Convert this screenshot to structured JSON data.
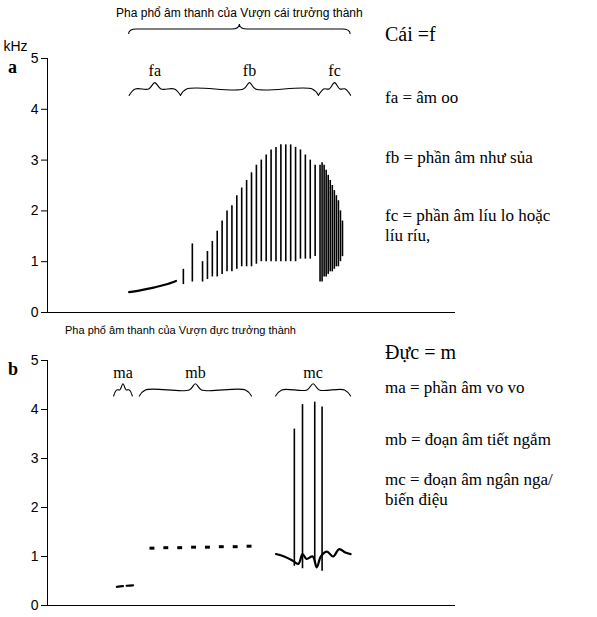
{
  "chart_data": [
    {
      "type": "spectrogram",
      "panel_label": "a",
      "title": "Pha phổ âm thanh của Vượn cái trưởng thành",
      "ylabel": "kHz",
      "color": "#000000",
      "xlim": [
        0,
        100
      ],
      "ylim": [
        0,
        5
      ],
      "yticks": [
        0,
        1,
        2,
        3,
        4,
        5
      ],
      "tick_labels": "y",
      "annotations": [
        "Cái =f",
        "fa = âm oo",
        "fb = phần âm như sủa",
        "fc = phần âm líu lo hoặc líu ríu,"
      ],
      "series": [
        {
          "name": "fa",
          "span": [
            20,
            32.6
          ],
          "marks": [
            {
              "type": "line",
              "x": [
                20,
                23,
                26,
                29,
                31.5
              ],
              "values": [
                0.4,
                0.44,
                0.49,
                0.55,
                0.62
              ]
            }
          ]
        },
        {
          "name": "fb",
          "span": [
            32.6,
            66.4
          ],
          "marks": [
            {
              "type": "rules",
              "x": [
                33.3,
                35.5,
                38.0,
                39.2,
                40.4,
                41.6,
                42.8,
                44.0,
                45.2,
                46.4,
                47.6,
                48.8,
                50.0,
                51.2,
                52.4,
                53.6,
                54.8,
                56.0,
                57.2,
                58.4,
                59.6,
                60.8,
                62.0,
                63.2,
                64.4,
                65.6
              ],
              "low": [
                0.55,
                0.6,
                0.6,
                0.65,
                0.7,
                0.7,
                0.75,
                0.8,
                0.8,
                0.85,
                0.9,
                0.9,
                0.9,
                0.95,
                1.0,
                1.0,
                1.0,
                1.0,
                1.0,
                1.0,
                1.0,
                1.0,
                1.05,
                1.05,
                1.05,
                1.1
              ],
              "high": [
                0.85,
                1.35,
                1.0,
                1.2,
                1.4,
                1.6,
                1.8,
                2.0,
                2.1,
                2.3,
                2.45,
                2.6,
                2.75,
                2.9,
                3.0,
                3.1,
                3.2,
                3.25,
                3.3,
                3.3,
                3.3,
                3.25,
                3.2,
                3.1,
                3.0,
                2.9
              ]
            }
          ]
        },
        {
          "name": "fc",
          "span": [
            66.4,
            74.3
          ],
          "marks": [
            {
              "type": "rules",
              "x": [
                66.8,
                67.3,
                67.8,
                68.3,
                68.8,
                69.3,
                69.8,
                70.3,
                70.8,
                71.3,
                71.8,
                72.3
              ],
              "low": [
                0.6,
                0.6,
                0.7,
                0.7,
                0.75,
                0.8,
                0.8,
                0.85,
                0.9,
                0.9,
                1.0,
                1.1
              ],
              "high": [
                2.9,
                2.95,
                2.9,
                2.8,
                2.7,
                2.6,
                2.5,
                2.4,
                2.3,
                2.2,
                2.0,
                1.8
              ]
            }
          ]
        }
      ]
    },
    {
      "type": "spectrogram",
      "panel_label": "b",
      "title": "Pha phổ âm thanh của Vượn đực trưởng thành",
      "color": "#000000",
      "xlim": [
        0,
        100
      ],
      "ylim": [
        0,
        5
      ],
      "yticks": [
        0,
        1,
        2,
        3,
        4,
        5
      ],
      "tick_labels": "y",
      "annotations": [
        "Đực = m",
        "ma = phần âm vo vo",
        "mb = đoạn âm tiết ngắm",
        "mc = đoạn âm ngân nga/ biến điệu"
      ],
      "series": [
        {
          "name": "ma",
          "span": [
            16.2,
            20.8
          ],
          "marks": [
            {
              "type": "line",
              "line_style": "dashed",
              "x": [
                17,
                19,
                21
              ],
              "values": [
                0.38,
                0.4,
                0.41
              ]
            }
          ]
        },
        {
          "name": "mb",
          "span": [
            22.5,
            50
          ],
          "marks": [
            {
              "type": "dashes",
              "x": [
                25,
                28.4,
                31.8,
                35.2,
                38.6,
                42,
                45.4,
                48.8
              ],
              "x_end": [
                26.2,
                29.6,
                33,
                36.4,
                39.8,
                43.2,
                46.6,
                50
              ],
              "values": [
                1.17,
                1.18,
                1.18,
                1.19,
                1.19,
                1.2,
                1.2,
                1.21
              ]
            }
          ]
        },
        {
          "name": "mc",
          "span": [
            55.9,
            74.3
          ],
          "marks": [
            {
              "type": "line",
              "x": [
                56,
                58,
                60,
                61.5,
                62.5,
                63.5,
                65,
                66,
                67,
                68.5,
                70,
                71.5,
                73,
                74.3
              ],
              "values": [
                1.05,
                1.0,
                0.92,
                0.85,
                1.05,
                0.95,
                1.0,
                0.78,
                1.0,
                1.1,
                1.0,
                1.15,
                1.08,
                1.05
              ]
            },
            {
              "type": "rules",
              "x": [
                60.5,
                62.5,
                65.5,
                67.3
              ],
              "low": [
                0.8,
                0.75,
                0.85,
                0.7
              ],
              "high": [
                3.6,
                4.1,
                4.15,
                4.05
              ]
            }
          ]
        }
      ]
    }
  ]
}
